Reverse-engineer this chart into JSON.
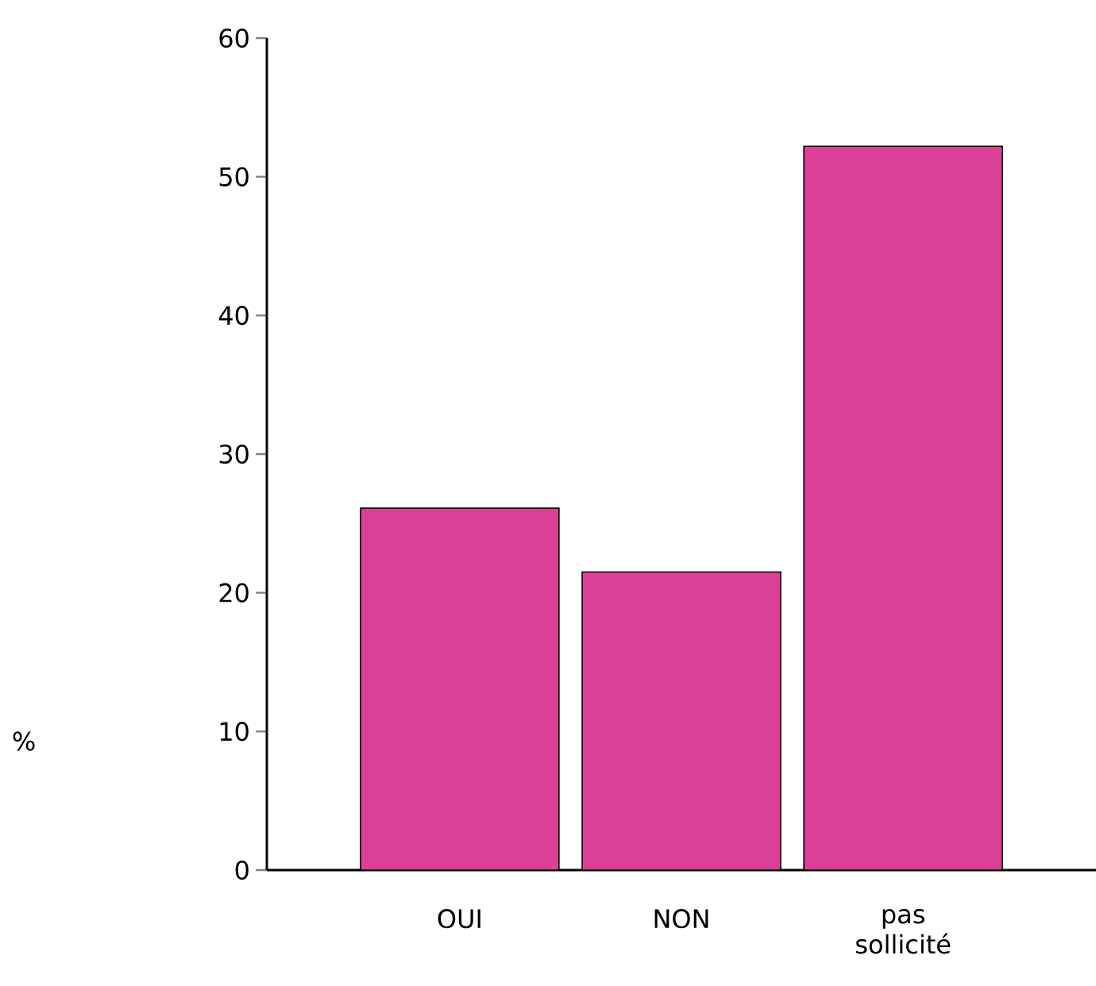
{
  "chart_data": {
    "type": "bar",
    "annotations": [
      "%"
    ],
    "categories": [
      "OUI",
      "NON",
      "pas sollicité"
    ],
    "values": [
      26.1,
      21.5,
      52.2
    ],
    "color": "#dc3f96",
    "ylim": [
      0,
      60
    ],
    "yticks": [
      0,
      10,
      20,
      30,
      40,
      50,
      60
    ]
  }
}
